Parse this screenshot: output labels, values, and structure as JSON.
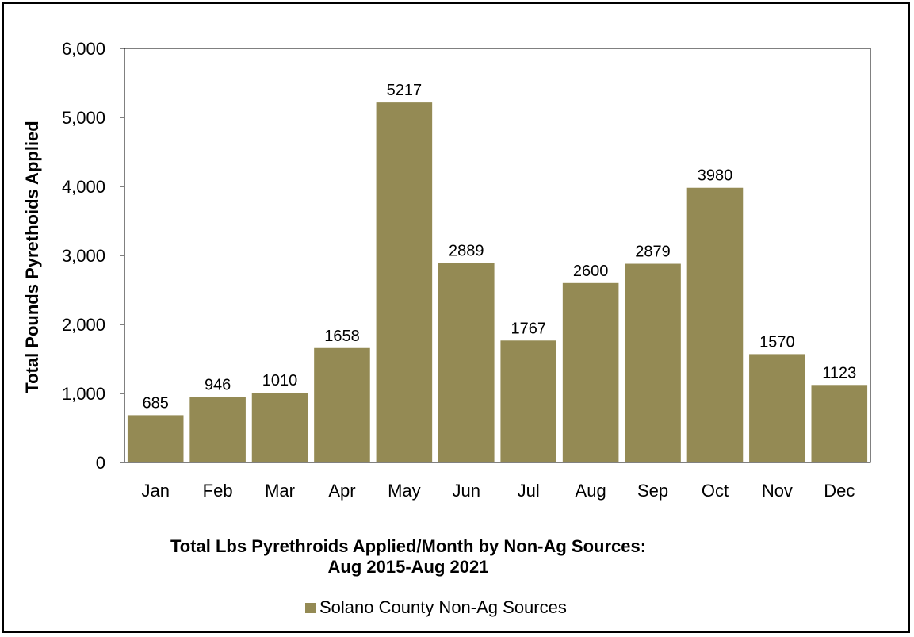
{
  "chart_data": {
    "type": "bar",
    "title": "Total Lbs Pyrethroids Applied/Month by Non-Ag Sources:",
    "subtitle": "Aug 2015-Aug 2021",
    "xlabel": "",
    "ylabel": "Total Pounds Pyrethoids Applied",
    "categories": [
      "Jan",
      "Feb",
      "Mar",
      "Apr",
      "May",
      "Jun",
      "Jul",
      "Aug",
      "Sep",
      "Oct",
      "Nov",
      "Dec"
    ],
    "series": [
      {
        "name": "Solano County Non-Ag Sources",
        "values": [
          685,
          946,
          1010,
          1658,
          5217,
          2889,
          1767,
          2600,
          2879,
          3980,
          1570,
          1123
        ],
        "color": "#948a54"
      }
    ],
    "ylim": [
      0,
      6000
    ],
    "yticks": [
      0,
      1000,
      2000,
      3000,
      4000,
      5000,
      6000
    ],
    "ytick_labels": [
      "0",
      "1,000",
      "2,000",
      "3,000",
      "4,000",
      "5,000",
      "6,000"
    ],
    "grid": false,
    "legend": "bottom"
  }
}
